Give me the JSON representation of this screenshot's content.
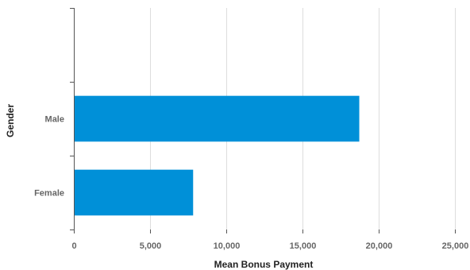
{
  "chart_data": {
    "type": "bar",
    "orientation": "horizontal",
    "categories": [
      "Male",
      "Female"
    ],
    "values": [
      18700,
      7800
    ],
    "xlabel": "Mean Bonus Payment",
    "ylabel": "Gender",
    "xlim": [
      0,
      25000
    ],
    "xticks": [
      0,
      5000,
      10000,
      15000,
      20000,
      25000
    ],
    "xtick_labels": [
      "0",
      "5,000",
      "10,000",
      "15,000",
      "20,000",
      "25,000"
    ],
    "grid": true,
    "legend": "none",
    "bar_color": "#0090D8",
    "grid_color": "#DDDDDD",
    "axis_color": "#555555"
  }
}
